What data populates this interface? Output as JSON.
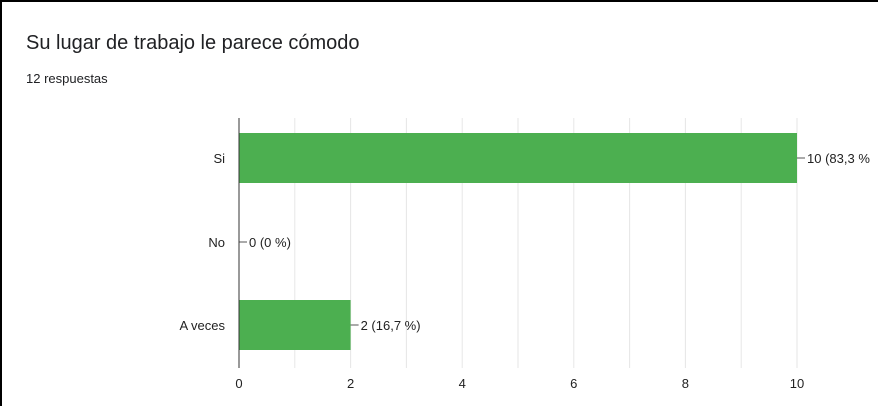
{
  "title": "Su lugar de trabajo le parece cómodo",
  "subtitle": "12 respuestas",
  "chart_data": {
    "type": "bar",
    "orientation": "horizontal",
    "categories": [
      "Si",
      "No",
      "A veces"
    ],
    "values": [
      10,
      0,
      2
    ],
    "data_labels": [
      "10 (83,3 %",
      "0 (0 %)",
      "2 (16,7 %)"
    ],
    "x_ticks": [
      "0",
      "2",
      "4",
      "6",
      "8",
      "10"
    ],
    "xlim": [
      0,
      10
    ],
    "bar_color": "#4caf50",
    "grid": true
  }
}
